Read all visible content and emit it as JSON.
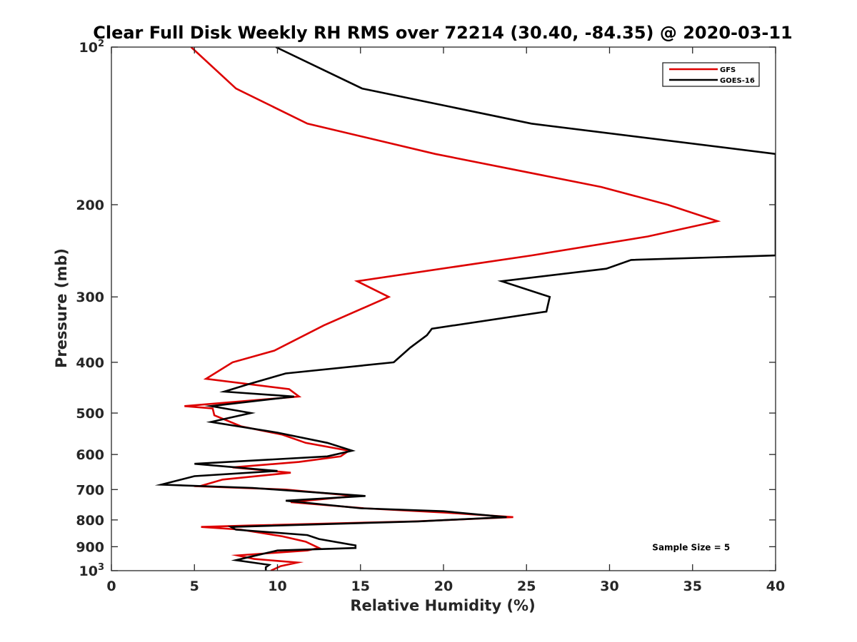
{
  "chart_data": {
    "type": "line",
    "title": "Clear Full Disk Weekly RH RMS over 72214 (30.40, -84.35) @ 2020-03-11",
    "xlabel": "Relative Humidity (%)",
    "ylabel": "Pressure (mb)",
    "xlim": [
      0,
      40
    ],
    "ylim": [
      100,
      1000
    ],
    "yscale": "log",
    "y_reversed": true,
    "xticks": [
      0,
      5,
      10,
      15,
      20,
      25,
      30,
      35,
      40
    ],
    "xtick_labels": [
      "0",
      "5",
      "10",
      "15",
      "20",
      "25",
      "30",
      "35",
      "40"
    ],
    "yticks": [
      100,
      200,
      300,
      400,
      500,
      600,
      700,
      800,
      900,
      1000
    ],
    "ytick_labels": [
      {
        "base": "10",
        "exp": "2"
      },
      {
        "base": "200",
        "exp": ""
      },
      {
        "base": "300",
        "exp": ""
      },
      {
        "base": "400",
        "exp": ""
      },
      {
        "base": "500",
        "exp": ""
      },
      {
        "base": "600",
        "exp": ""
      },
      {
        "base": "700",
        "exp": ""
      },
      {
        "base": "800",
        "exp": ""
      },
      {
        "base": "900",
        "exp": ""
      },
      {
        "base": "10",
        "exp": "3"
      }
    ],
    "grid": false,
    "legend_position": "top-right",
    "series": [
      {
        "name": "GFS",
        "color": "#dd0000",
        "points": [
          [
            4.8,
            100
          ],
          [
            7.5,
            120
          ],
          [
            11.8,
            140
          ],
          [
            19.5,
            160
          ],
          [
            29.5,
            185
          ],
          [
            33.5,
            200
          ],
          [
            36.5,
            215
          ],
          [
            32.3,
            230
          ],
          [
            25.3,
            250
          ],
          [
            14.8,
            280
          ],
          [
            16.7,
            300
          ],
          [
            12.8,
            340
          ],
          [
            9.8,
            380
          ],
          [
            7.3,
            400
          ],
          [
            5.7,
            430
          ],
          [
            10.7,
            450
          ],
          [
            11.3,
            465
          ],
          [
            4.4,
            485
          ],
          [
            6.1,
            490
          ],
          [
            6.2,
            505
          ],
          [
            7.8,
            530
          ],
          [
            10.3,
            550
          ],
          [
            11.7,
            570
          ],
          [
            14.3,
            590
          ],
          [
            13.8,
            605
          ],
          [
            11.3,
            620
          ],
          [
            7.3,
            635
          ],
          [
            10.8,
            650
          ],
          [
            6.7,
            670
          ],
          [
            5.3,
            690
          ],
          [
            10.5,
            700
          ],
          [
            14.7,
            720
          ],
          [
            10.8,
            740
          ],
          [
            15.2,
            760
          ],
          [
            20.2,
            775
          ],
          [
            24.2,
            790
          ],
          [
            18.3,
            805
          ],
          [
            8.3,
            820
          ],
          [
            5.4,
            825
          ],
          [
            7.8,
            835
          ],
          [
            10.3,
            860
          ],
          [
            11.7,
            880
          ],
          [
            12.5,
            905
          ],
          [
            11.8,
            915
          ],
          [
            7.6,
            935
          ],
          [
            8.6,
            950
          ],
          [
            11.2,
            965
          ],
          [
            10.2,
            980
          ],
          [
            9.6,
            1000
          ]
        ]
      },
      {
        "name": "GOES-16",
        "color": "#000000",
        "points": [
          [
            9.9,
            100
          ],
          [
            15.1,
            120
          ],
          [
            25.3,
            140
          ],
          [
            40.0,
            160
          ],
          [
            40.0,
            250
          ],
          [
            31.3,
            255
          ],
          [
            29.8,
            265
          ],
          [
            23.5,
            280
          ],
          [
            26.4,
            300
          ],
          [
            26.2,
            320
          ],
          [
            19.3,
            345
          ],
          [
            19.0,
            355
          ],
          [
            18.0,
            375
          ],
          [
            17.0,
            400
          ],
          [
            10.5,
            420
          ],
          [
            8.3,
            440
          ],
          [
            6.8,
            455
          ],
          [
            11.0,
            465
          ],
          [
            6.0,
            485
          ],
          [
            8.4,
            500
          ],
          [
            6.0,
            520
          ],
          [
            10.0,
            545
          ],
          [
            13.0,
            570
          ],
          [
            14.5,
            590
          ],
          [
            13.0,
            605
          ],
          [
            5.0,
            625
          ],
          [
            10.0,
            645
          ],
          [
            5.0,
            660
          ],
          [
            3.0,
            685
          ],
          [
            8.5,
            695
          ],
          [
            15.3,
            720
          ],
          [
            10.5,
            735
          ],
          [
            15.0,
            760
          ],
          [
            20.0,
            770
          ],
          [
            23.8,
            790
          ],
          [
            18.5,
            805
          ],
          [
            7.2,
            825
          ],
          [
            7.5,
            835
          ],
          [
            11.8,
            855
          ],
          [
            12.5,
            870
          ],
          [
            14.7,
            895
          ],
          [
            14.7,
            905
          ],
          [
            10.0,
            915
          ],
          [
            8.4,
            940
          ],
          [
            7.5,
            955
          ],
          [
            9.5,
            975
          ],
          [
            9.3,
            985
          ],
          [
            9.3,
            1000
          ]
        ]
      }
    ],
    "annotations": [
      {
        "text": "Sample Size = 5",
        "x": 35,
        "y": 900
      }
    ]
  }
}
